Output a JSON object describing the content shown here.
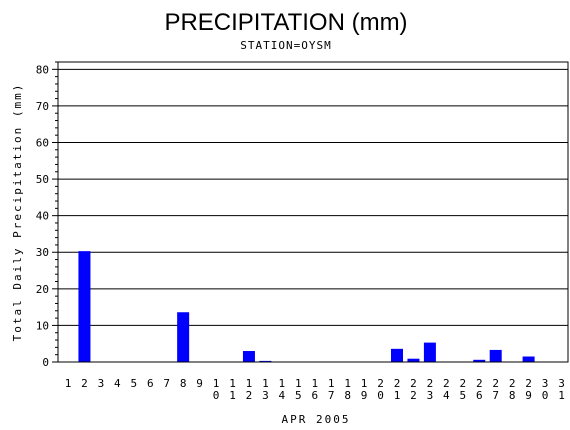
{
  "chart_data": {
    "type": "bar",
    "title": "PRECIPITATION (mm)",
    "subtitle": "STATION=OYSM",
    "xlabel": "APR 2005",
    "ylabel": "Total Daily Precipitation (mm)",
    "ylim": [
      0,
      82
    ],
    "yticks": [
      0,
      10,
      20,
      30,
      40,
      50,
      60,
      70,
      80
    ],
    "grid": true,
    "bar_color": "#0000ff",
    "categories": [
      "1",
      "2",
      "3",
      "4",
      "5",
      "6",
      "7",
      "8",
      "9",
      "10",
      "11",
      "12",
      "13",
      "14",
      "15",
      "16",
      "17",
      "18",
      "19",
      "20",
      "21",
      "22",
      "23",
      "24",
      "25",
      "26",
      "27",
      "28",
      "29",
      "30",
      "31"
    ],
    "values": [
      0,
      30.3,
      0,
      0,
      0,
      0,
      0,
      13.6,
      0,
      0,
      0,
      3.0,
      0.3,
      0,
      0,
      0,
      0,
      0,
      0,
      0,
      3.6,
      0.9,
      5.3,
      0,
      0,
      0.6,
      3.3,
      0,
      1.5,
      0,
      0
    ]
  }
}
